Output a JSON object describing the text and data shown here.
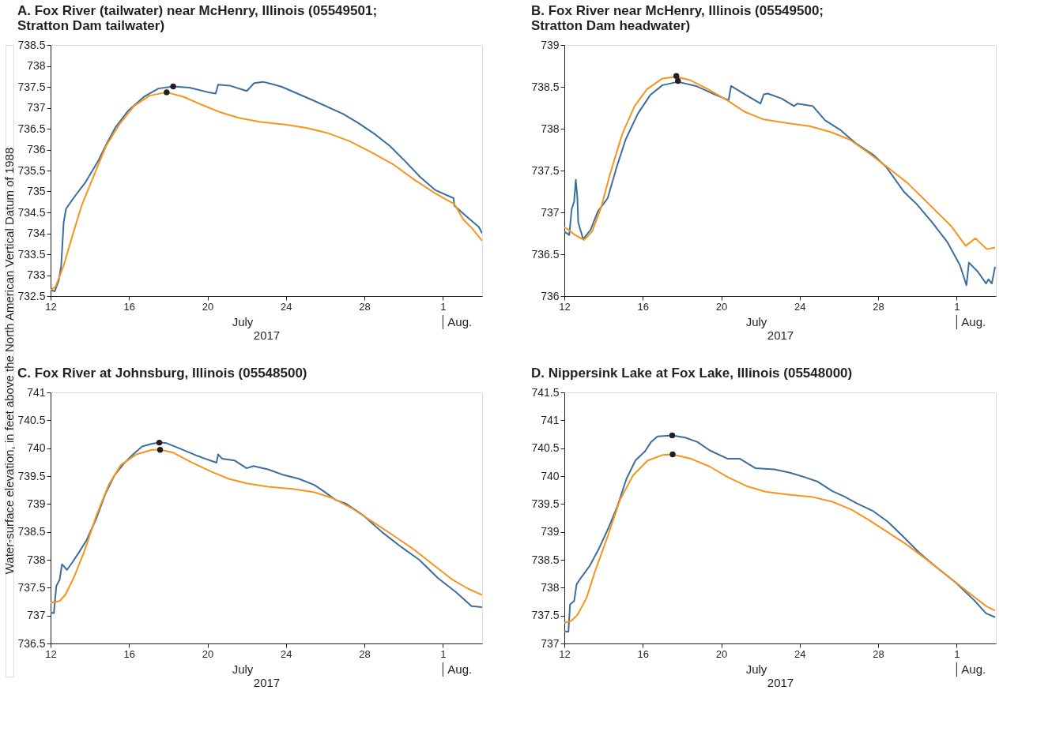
{
  "chart_data": [
    {
      "type": "line",
      "title": "A.  Fox River (tailwater) near McHenry, Illinois (05549501;\nStratton Dam tailwater)",
      "xlabel": "2017",
      "ylabel": "Water-surface elevation, in feet above the North American Vertical Datum of 1988",
      "annotations": [
        "July",
        "Aug."
      ],
      "grid": false,
      "line_style": "solid",
      "xlim": [
        "2017-07-12",
        "2017-08-03"
      ],
      "xticks": [
        {
          "value": "2017-07-12",
          "label": "12"
        },
        {
          "value": "2017-07-16",
          "label": "16"
        },
        {
          "value": "2017-07-20",
          "label": "20"
        },
        {
          "value": "2017-07-24",
          "label": "24"
        },
        {
          "value": "2017-07-28",
          "label": "28"
        },
        {
          "value": "2017-08-01",
          "label": "1"
        }
      ],
      "ylim": [
        732.5,
        738.5
      ],
      "yticks": [
        732.5,
        733,
        733.5,
        734,
        734.5,
        735,
        735.5,
        736,
        736.5,
        737,
        737.5,
        738,
        738.5
      ],
      "series": [
        {
          "color": "#3b6e9e",
          "x": [
            "2017-07-12T00:00",
            "2017-07-12T05:00",
            "2017-07-12T10:00",
            "2017-07-12T13:00",
            "2017-07-12T16:00",
            "2017-07-12T19:00",
            "2017-07-13T07:00",
            "2017-07-13T18:00",
            "2017-07-14T10:00",
            "2017-07-14T20:00",
            "2017-07-15T07:00",
            "2017-07-15T23:00",
            "2017-07-16T18:00",
            "2017-07-17T12:00",
            "2017-07-18T06:00",
            "2017-07-19T02:00",
            "2017-07-20T01:00",
            "2017-07-20T10:00",
            "2017-07-20T13:00",
            "2017-07-21T03:00",
            "2017-07-22T00:00",
            "2017-07-22T02:00",
            "2017-07-22T09:00",
            "2017-07-22T20:00",
            "2017-07-23T08:00",
            "2017-07-23T19:00",
            "2017-07-25T09:00",
            "2017-07-26T22:00",
            "2017-07-27T17:00",
            "2017-07-28T12:00",
            "2017-07-29T07:00",
            "2017-07-30T02:00",
            "2017-07-30T20:00",
            "2017-07-31T15:00",
            "2017-08-01T13:00",
            "2017-08-01T14:00",
            "2017-08-02T05:00",
            "2017-08-02T20:00",
            "2017-08-03T00:00"
          ],
          "values": [
            732.65,
            732.61,
            732.87,
            733.23,
            734.26,
            734.59,
            734.92,
            735.2,
            735.72,
            736.12,
            736.52,
            736.93,
            737.26,
            737.46,
            737.51,
            737.48,
            737.37,
            737.34,
            737.55,
            737.53,
            737.4,
            737.44,
            737.59,
            737.62,
            737.56,
            737.5,
            737.18,
            736.85,
            736.63,
            736.38,
            736.09,
            735.72,
            735.35,
            735.03,
            734.84,
            734.66,
            734.4,
            734.15,
            734.0
          ]
        },
        {
          "color": "#f7941d",
          "x": [
            "2017-07-12T00:00",
            "2017-07-12T06:00",
            "2017-07-12T16:00",
            "2017-07-13T03:00",
            "2017-07-13T14:00",
            "2017-07-14T06:00",
            "2017-07-14T20:00",
            "2017-07-15T12:00",
            "2017-07-16T06:00",
            "2017-07-17T01:00",
            "2017-07-17T22:00",
            "2017-07-18T19:00",
            "2017-07-19T17:00",
            "2017-07-20T16:00",
            "2017-07-21T14:00",
            "2017-07-22T17:00",
            "2017-07-23T23:00",
            "2017-07-25T01:00",
            "2017-07-26T04:00",
            "2017-07-27T06:00",
            "2017-07-28T08:00",
            "2017-07-29T11:00",
            "2017-07-30T13:00",
            "2017-07-31T15:00",
            "2017-08-01T14:00",
            "2017-08-02T01:00",
            "2017-08-02T12:00",
            "2017-08-03T00:00"
          ],
          "values": [
            732.65,
            732.72,
            733.23,
            733.96,
            734.66,
            735.43,
            736.09,
            736.6,
            737.04,
            737.29,
            737.37,
            737.26,
            737.07,
            736.89,
            736.76,
            736.66,
            736.6,
            736.52,
            736.39,
            736.2,
            735.94,
            735.65,
            735.28,
            734.95,
            734.7,
            734.33,
            734.11,
            733.82
          ]
        },
        {
          "type": "scatter",
          "marker": "circle",
          "color": "#231f20",
          "x": [
            "2017-07-18T06:00",
            "2017-07-17T22:00"
          ],
          "values": [
            737.51,
            737.37
          ]
        }
      ]
    },
    {
      "type": "line",
      "title": "B.  Fox River near McHenry, Illinois (05549500;\nStratton Dam headwater)",
      "xlabel": "2017",
      "annotations": [
        "July",
        "Aug."
      ],
      "grid": false,
      "line_style": "solid",
      "xlim": [
        "2017-07-12",
        "2017-08-03"
      ],
      "xticks": [
        {
          "value": "2017-07-12",
          "label": "12"
        },
        {
          "value": "2017-07-16",
          "label": "16"
        },
        {
          "value": "2017-07-20",
          "label": "20"
        },
        {
          "value": "2017-07-24",
          "label": "24"
        },
        {
          "value": "2017-07-28",
          "label": "28"
        },
        {
          "value": "2017-08-01",
          "label": "1"
        }
      ],
      "ylim": [
        736,
        739
      ],
      "yticks": [
        736,
        736.5,
        737,
        737.5,
        738,
        738.5,
        739
      ],
      "series": [
        {
          "color": "#3b6e9e",
          "x": [
            "2017-07-12T00:00",
            "2017-07-12T06:00",
            "2017-07-12T09:00",
            "2017-07-12T12:00",
            "2017-07-12T14:00",
            "2017-07-12T16:00",
            "2017-07-12T17:00",
            "2017-07-12T23:00",
            "2017-07-13T08:00",
            "2017-07-13T17:00",
            "2017-07-14T05:00",
            "2017-07-14T16:00",
            "2017-07-15T03:00",
            "2017-07-15T18:00",
            "2017-07-16T09:00",
            "2017-07-17T00:00",
            "2017-07-17T19:00",
            "2017-07-18T17:00",
            "2017-07-19T16:00",
            "2017-07-20T09:00",
            "2017-07-20T12:00",
            "2017-07-21T05:00",
            "2017-07-22T00:00",
            "2017-07-22T04:00",
            "2017-07-22T09:00",
            "2017-07-23T02:00",
            "2017-07-23T17:00",
            "2017-07-23T21:00",
            "2017-07-24T16:00",
            "2017-07-25T07:00",
            "2017-07-26T01:00",
            "2017-07-26T20:00",
            "2017-07-27T19:00",
            "2017-07-28T10:00",
            "2017-07-29T08:00",
            "2017-07-29T23:00",
            "2017-07-30T18:00",
            "2017-07-31T13:00",
            "2017-08-01T04:00",
            "2017-08-01T12:00",
            "2017-08-01T15:00",
            "2017-08-02T02:00",
            "2017-08-02T12:00",
            "2017-08-02T15:00",
            "2017-08-02T19:00",
            "2017-08-02T23:00"
          ],
          "values": [
            736.77,
            736.73,
            737.04,
            737.13,
            737.39,
            737.17,
            736.88,
            736.68,
            736.79,
            737.01,
            737.17,
            737.54,
            737.87,
            738.18,
            738.4,
            738.52,
            738.56,
            738.51,
            738.41,
            738.34,
            738.51,
            738.41,
            738.3,
            738.41,
            738.42,
            738.36,
            738.27,
            738.3,
            738.27,
            738.1,
            737.99,
            737.83,
            737.68,
            737.54,
            737.24,
            737.1,
            736.88,
            736.64,
            736.37,
            736.13,
            736.4,
            736.29,
            736.15,
            736.2,
            736.15,
            736.35
          ]
        },
        {
          "color": "#f7941d",
          "x": [
            "2017-07-12T00:00",
            "2017-07-12T04:00",
            "2017-07-12T13:00",
            "2017-07-13T00:00",
            "2017-07-13T10:00",
            "2017-07-13T21:00",
            "2017-07-14T08:00",
            "2017-07-14T23:00",
            "2017-07-15T14:00",
            "2017-07-16T05:00",
            "2017-07-17T00:00",
            "2017-07-17T17:00",
            "2017-07-18T10:00",
            "2017-07-19T08:00",
            "2017-07-20T07:00",
            "2017-07-21T05:00",
            "2017-07-22T04:00",
            "2017-07-23T06:00",
            "2017-07-24T12:00",
            "2017-07-25T14:00",
            "2017-07-26T13:00",
            "2017-07-27T11:00",
            "2017-07-28T10:00",
            "2017-07-29T12:00",
            "2017-07-30T14:00",
            "2017-07-31T17:00",
            "2017-08-01T11:00",
            "2017-08-01T23:00",
            "2017-08-02T13:00",
            "2017-08-02T23:00"
          ],
          "values": [
            736.82,
            736.8,
            736.73,
            736.67,
            736.77,
            737.06,
            737.46,
            737.94,
            738.27,
            738.47,
            738.6,
            738.62,
            738.58,
            738.47,
            738.34,
            738.2,
            738.11,
            738.07,
            738.03,
            737.96,
            737.87,
            737.72,
            737.55,
            737.35,
            737.1,
            736.84,
            736.6,
            736.69,
            736.56,
            736.58
          ]
        },
        {
          "type": "scatter",
          "marker": "circle",
          "color": "#231f20",
          "x": [
            "2017-07-17T17:00",
            "2017-07-17T19:00"
          ],
          "values": [
            738.63,
            738.57
          ]
        }
      ]
    },
    {
      "type": "line",
      "title": "C.  Fox River at Johnsburg, Illinois (05548500)",
      "xlabel": "2017",
      "annotations": [
        "July",
        "Aug."
      ],
      "grid": false,
      "line_style": "solid",
      "xlim": [
        "2017-07-12",
        "2017-08-03"
      ],
      "xticks": [
        {
          "value": "2017-07-12",
          "label": "12"
        },
        {
          "value": "2017-07-16",
          "label": "16"
        },
        {
          "value": "2017-07-20",
          "label": "20"
        },
        {
          "value": "2017-07-24",
          "label": "24"
        },
        {
          "value": "2017-07-28",
          "label": "28"
        },
        {
          "value": "2017-08-01",
          "label": "1"
        }
      ],
      "ylim": [
        736.5,
        741
      ],
      "yticks": [
        736.5,
        737,
        737.5,
        738,
        738.5,
        739,
        739.5,
        740,
        740.5,
        741
      ],
      "series": [
        {
          "color": "#3b6e9e",
          "x": [
            "2017-07-12T00:00",
            "2017-07-12T04:00",
            "2017-07-12T07:00",
            "2017-07-12T11:00",
            "2017-07-12T14:00",
            "2017-07-12T20:00",
            "2017-07-13T02:00",
            "2017-07-13T11:00",
            "2017-07-13T20:00",
            "2017-07-14T08:00",
            "2017-07-14T19:00",
            "2017-07-15T06:00",
            "2017-07-15T18:00",
            "2017-07-16T05:00",
            "2017-07-16T16:00",
            "2017-07-17T04:00",
            "2017-07-17T14:00",
            "2017-07-17T22:00",
            "2017-07-18T13:00",
            "2017-07-19T12:00",
            "2017-07-20T11:00",
            "2017-07-20T13:00",
            "2017-07-20T18:00",
            "2017-07-21T09:00",
            "2017-07-22T00:00",
            "2017-07-22T08:00",
            "2017-07-23T02:00",
            "2017-07-23T21:00",
            "2017-07-24T16:00",
            "2017-07-25T11:00",
            "2017-07-25T22:00",
            "2017-07-26T13:00",
            "2017-07-27T01:00",
            "2017-07-27T23:00",
            "2017-07-28T22:00",
            "2017-07-29T20:00",
            "2017-07-30T19:00",
            "2017-07-31T18:00",
            "2017-08-01T16:00",
            "2017-08-02T11:00",
            "2017-08-03T00:00"
          ],
          "values": [
            737.06,
            737.04,
            737.53,
            737.64,
            737.92,
            737.82,
            737.94,
            738.14,
            738.35,
            738.74,
            739.18,
            739.51,
            739.73,
            739.89,
            740.03,
            740.08,
            740.1,
            740.09,
            740.0,
            739.86,
            739.74,
            739.89,
            739.81,
            739.78,
            739.64,
            739.68,
            739.62,
            739.52,
            739.45,
            739.34,
            739.23,
            739.07,
            739.01,
            738.79,
            738.49,
            738.24,
            738.0,
            737.67,
            737.42,
            737.17,
            737.15
          ]
        },
        {
          "color": "#f7941d",
          "x": [
            "2017-07-12T00:00",
            "2017-07-12T11:00",
            "2017-07-12T18:00",
            "2017-07-13T05:00",
            "2017-07-13T17:00",
            "2017-07-14T08:00",
            "2017-07-14T23:00",
            "2017-07-15T14:00",
            "2017-07-16T09:00",
            "2017-07-17T04:00",
            "2017-07-17T15:00",
            "2017-07-18T06:00",
            "2017-07-19T04:00",
            "2017-07-20T03:00",
            "2017-07-21T02:00",
            "2017-07-22T00:00",
            "2017-07-23T02:00",
            "2017-07-24T08:00",
            "2017-07-25T11:00",
            "2017-07-26T10:00",
            "2017-07-27T08:00",
            "2017-07-28T07:00",
            "2017-07-29T09:00",
            "2017-07-30T12:00",
            "2017-07-31T14:00",
            "2017-08-01T12:00",
            "2017-08-02T07:00",
            "2017-08-03T00:00"
          ],
          "values": [
            737.23,
            737.26,
            737.37,
            737.7,
            738.14,
            738.79,
            739.34,
            739.7,
            739.89,
            739.97,
            739.97,
            739.92,
            739.75,
            739.59,
            739.45,
            739.37,
            739.31,
            739.27,
            739.21,
            739.1,
            738.93,
            738.71,
            738.46,
            738.19,
            737.89,
            737.64,
            737.48,
            737.37
          ]
        },
        {
          "type": "scatter",
          "marker": "circle",
          "color": "#231f20",
          "x": [
            "2017-07-17T13:00",
            "2017-07-17T14:00"
          ],
          "values": [
            740.1,
            739.97
          ]
        }
      ]
    },
    {
      "type": "line",
      "title": "D.  Nippersink Lake at Fox Lake, Illinois (05548000)",
      "xlabel": "2017",
      "annotations": [
        "July",
        "Aug."
      ],
      "grid": false,
      "line_style": "solid",
      "xlim": [
        "2017-07-12",
        "2017-08-03"
      ],
      "xticks": [
        {
          "value": "2017-07-12",
          "label": "12"
        },
        {
          "value": "2017-07-16",
          "label": "16"
        },
        {
          "value": "2017-07-20",
          "label": "20"
        },
        {
          "value": "2017-07-24",
          "label": "24"
        },
        {
          "value": "2017-07-28",
          "label": "28"
        },
        {
          "value": "2017-08-01",
          "label": "1"
        }
      ],
      "ylim": [
        737,
        741.5
      ],
      "yticks": [
        737,
        737.5,
        738,
        738.5,
        739,
        739.5,
        740,
        740.5,
        741,
        741.5
      ],
      "series": [
        {
          "color": "#3b6e9e",
          "x": [
            "2017-07-12T00:00",
            "2017-07-12T05:00",
            "2017-07-12T07:00",
            "2017-07-12T12:00",
            "2017-07-12T15:00",
            "2017-07-12T20:00",
            "2017-07-13T07:00",
            "2017-07-13T18:00",
            "2017-07-14T06:00",
            "2017-07-14T17:00",
            "2017-07-15T04:00",
            "2017-07-15T15:00",
            "2017-07-16T03:00",
            "2017-07-16T10:00",
            "2017-07-16T18:00",
            "2017-07-17T12:00",
            "2017-07-18T04:00",
            "2017-07-18T19:00",
            "2017-07-19T10:00",
            "2017-07-20T08:00",
            "2017-07-20T23:00",
            "2017-07-21T18:00",
            "2017-07-22T17:00",
            "2017-07-23T12:00",
            "2017-07-24T06:00",
            "2017-07-24T22:00",
            "2017-07-25T16:00",
            "2017-07-26T07:00",
            "2017-07-26T22:00",
            "2017-07-27T17:00",
            "2017-07-28T12:00",
            "2017-07-29T07:00",
            "2017-07-30T02:00",
            "2017-07-31T00:00",
            "2017-07-31T23:00",
            "2017-08-01T21:00",
            "2017-08-02T12:00",
            "2017-08-02T23:00"
          ],
          "values": [
            737.22,
            737.21,
            737.7,
            737.76,
            738.06,
            738.17,
            738.39,
            738.69,
            739.07,
            739.46,
            739.95,
            740.28,
            740.45,
            740.61,
            740.71,
            740.73,
            740.69,
            740.61,
            740.46,
            740.31,
            740.31,
            740.14,
            740.12,
            740.06,
            739.98,
            739.9,
            739.73,
            739.63,
            739.51,
            739.38,
            739.18,
            738.91,
            738.63,
            738.36,
            738.09,
            737.78,
            737.54,
            737.47
          ]
        },
        {
          "color": "#f7941d",
          "x": [
            "2017-07-12T00:00",
            "2017-07-12T08:00",
            "2017-07-12T16:00",
            "2017-07-13T03:00",
            "2017-07-13T14:00",
            "2017-07-14T06:00",
            "2017-07-14T20:00",
            "2017-07-15T12:00",
            "2017-07-16T06:00",
            "2017-07-17T01:00",
            "2017-07-17T12:00",
            "2017-07-18T11:00",
            "2017-07-19T10:00",
            "2017-07-20T08:00",
            "2017-07-21T07:00",
            "2017-07-22T06:00",
            "2017-07-23T08:00",
            "2017-07-24T14:00",
            "2017-07-25T16:00",
            "2017-07-26T15:00",
            "2017-07-27T13:00",
            "2017-07-28T12:00",
            "2017-07-29T11:00",
            "2017-07-30T09:00",
            "2017-07-31T12:00",
            "2017-08-01T14:00",
            "2017-08-02T12:00",
            "2017-08-02T23:00"
          ],
          "values": [
            737.37,
            737.4,
            737.51,
            737.81,
            738.31,
            738.96,
            739.57,
            740.01,
            740.28,
            740.38,
            740.39,
            740.31,
            740.17,
            739.98,
            739.82,
            739.72,
            739.67,
            739.63,
            739.54,
            739.4,
            739.21,
            738.99,
            738.77,
            738.53,
            738.22,
            737.92,
            737.67,
            737.59
          ]
        },
        {
          "type": "scatter",
          "marker": "circle",
          "color": "#231f20",
          "x": [
            "2017-07-17T12:00",
            "2017-07-17T12:30"
          ],
          "values": [
            740.73,
            740.39
          ]
        }
      ]
    }
  ]
}
